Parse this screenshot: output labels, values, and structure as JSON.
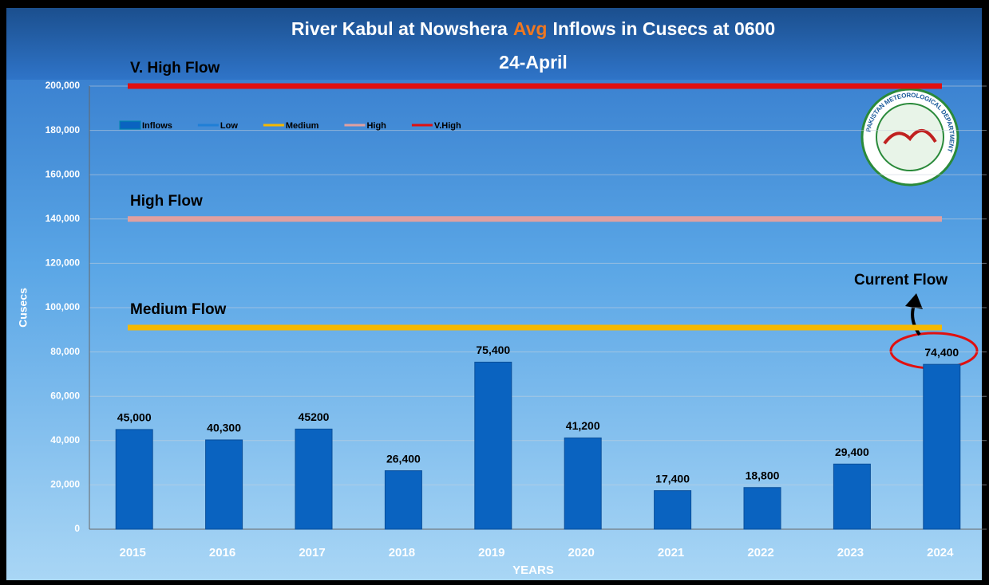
{
  "chart_data": {
    "type": "bar",
    "title_parts": [
      "River Kabul at Nowshera",
      "Avg",
      "Inflows in Cusecs at 0600"
    ],
    "title_colors": [
      "#ffffff",
      "#f07820",
      "#ffffff"
    ],
    "subtitle": "24-April",
    "y_label": "Cusecs",
    "x_label": "YEARS",
    "categories": [
      "2015",
      "2016",
      "2017",
      "2018",
      "2019",
      "2020",
      "2021",
      "2022",
      "2023",
      "2024"
    ],
    "series": [
      {
        "name": "Inflows",
        "color": "#0a63c0",
        "values": [
          45000,
          40300,
          45200,
          26400,
          75400,
          41200,
          17400,
          18800,
          29400,
          74400
        ],
        "value_labels": [
          "45,000",
          "40,300",
          "45200",
          "26,400",
          "75,400",
          "41,200",
          "17,400",
          "18,800",
          "29,400",
          "74,400"
        ]
      }
    ],
    "thresholds": [
      {
        "name": "Low",
        "color": "#1f7fd6"
      },
      {
        "name": "Medium",
        "color": "#f5b800",
        "value": 91000,
        "label": "Medium Flow"
      },
      {
        "name": "High",
        "color": "#e0a0a0",
        "value": 140000,
        "label": "High Flow"
      },
      {
        "name": "V.High",
        "color": "#e01010",
        "value": 200000,
        "label": "V. High Flow"
      }
    ],
    "ylim": [
      0,
      200000
    ],
    "yticks": [
      0,
      {
        "value": 20000,
        "label": "20,000"
      },
      {
        "value": 40000,
        "label": "40,000"
      },
      {
        "value": 60000,
        "label": "60,000"
      },
      {
        "value": 80000,
        "label": "80,000"
      },
      {
        "value": 100000,
        "label": "100,000"
      },
      {
        "value": 120000,
        "label": "120,000"
      },
      {
        "value": 140000,
        "label": "140,000"
      },
      {
        "value": 160000,
        "label": "160,000"
      },
      {
        "value": 180000,
        "label": "180,000"
      },
      {
        "value": {
          "value": 200000
        },
        "label": "200,000"
      }
    ],
    "grid": true,
    "annotation": "Current Flow",
    "logo_text": "PAKISTAN METEOROLOGICAL DEPARTMENT"
  }
}
